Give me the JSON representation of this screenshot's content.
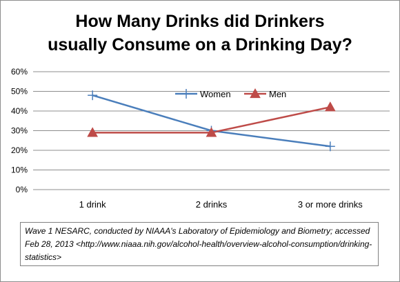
{
  "chart_data": {
    "type": "line",
    "title": "How Many Drinks did Drinkers usually Consume on a Drinking Day?",
    "title_lines": [
      "How Many Drinks did Drinkers",
      "usually Consume on a Drinking Day?"
    ],
    "categories": [
      "1 drink",
      "2 drinks",
      "3 or more drinks"
    ],
    "series": [
      {
        "name": "Women",
        "values": [
          48,
          30,
          22
        ],
        "color": "#4a7ebb",
        "marker": "plus"
      },
      {
        "name": "Men",
        "values": [
          29,
          29,
          42
        ],
        "color": "#be4b48",
        "marker": "triangle"
      }
    ],
    "ylim": [
      0,
      60
    ],
    "yticks": [
      0,
      10,
      20,
      30,
      40,
      50,
      60
    ],
    "ytick_labels": [
      "0%",
      "10%",
      "20%",
      "30%",
      "40%",
      "50%",
      "60%"
    ],
    "xlabel": "",
    "ylabel": "",
    "grid": true,
    "legend_position": "top-center"
  },
  "source_note": "Wave 1 NESARC, conducted by NIAAA's Laboratory of Epidemiology and Biometry; accessed Feb 28, 2013 <http://www.niaaa.nih.gov/alcohol-health/overview-alcohol-consumption/drinking-statistics>"
}
